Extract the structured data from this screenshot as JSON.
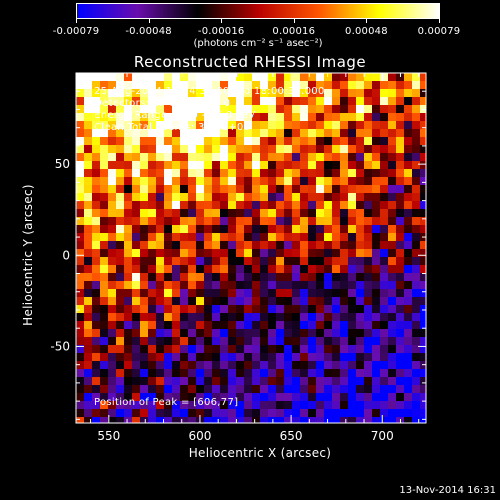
{
  "colorbar": {
    "units": "(photons cm⁻² s⁻¹ asec⁻²)",
    "tick_labels": [
      "-0.00079",
      "-0.00048",
      "-0.00016",
      "0.00016",
      "0.00048",
      "0.00079"
    ],
    "range": [
      -0.00079,
      0.00079
    ],
    "colors": [
      "#0000ff",
      "#6a0dad",
      "#000000",
      "#b80000",
      "#ff5500",
      "#ffff00",
      "#ffffff"
    ]
  },
  "overlay": {
    "time_range": "25-Aug-2014 17:54:34.000 to 18:00:34.000",
    "detectors": "Detectors: 3F 6F 9F, Att 0",
    "energy_range": "Energy Range: 12.0 - 25.0 keV",
    "clean_counts": "Clean     Total counts: 3.78E+03",
    "peak_position": "Position of Peak = [606,77]"
  },
  "footer": {
    "date": "13-Nov-2014 16:31"
  },
  "chart_data": {
    "type": "heatmap",
    "title": "Reconstructed RHESSI Image",
    "xlabel": "Heliocentric X (arcsec)",
    "ylabel": "Heliocentric Y (arcsec)",
    "xlim": [
      532,
      724
    ],
    "ylim": [
      -92,
      100
    ],
    "xticks": [
      550,
      600,
      650,
      700
    ],
    "yticks": [
      -50,
      0,
      50
    ],
    "peak": [
      606,
      77
    ]
  }
}
